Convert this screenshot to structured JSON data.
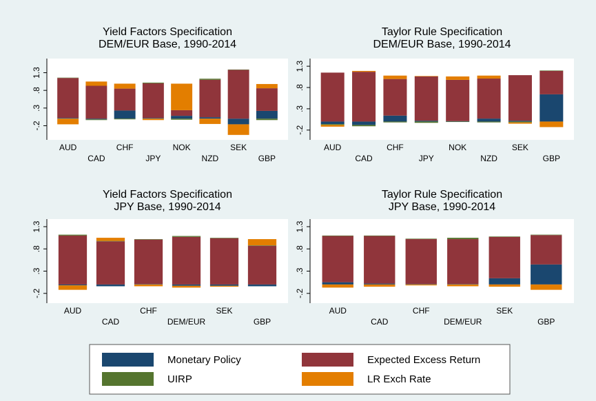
{
  "chart_data": [
    {
      "type": "bar",
      "title": "Yield Factors Specification",
      "subtitle": "DEM/EUR Base, 1990-2014",
      "categories": [
        "AUD",
        "CAD",
        "CHF",
        "JPY",
        "NOK",
        "NZD",
        "SEK",
        "GBP"
      ],
      "series": [
        {
          "name": "Monetary Policy",
          "color": "#1a476f",
          "values": [
            0.02,
            -0.02,
            0.23,
            0.02,
            0.08,
            0.04,
            -0.16,
            0.22
          ]
        },
        {
          "name": "Expected Excess Return",
          "color": "#90353b",
          "values": [
            1.13,
            0.93,
            0.62,
            0.98,
            0.16,
            1.06,
            1.38,
            0.64
          ]
        },
        {
          "name": "UIRP",
          "color": "#55752f",
          "values": [
            0.01,
            -0.02,
            -0.02,
            0.02,
            -0.03,
            0.03,
            0.01,
            -0.04
          ]
        },
        {
          "name": "LR Exch Rate",
          "color": "#e37e00",
          "values": [
            -0.16,
            0.12,
            0.14,
            -0.04,
            0.75,
            -0.15,
            -0.3,
            0.12
          ]
        }
      ],
      "ylim": [
        -0.6,
        1.7
      ],
      "yticks": [
        {
          "value": -0.2,
          "label": "-.2"
        },
        {
          "value": 0.3,
          "label": ".3"
        },
        {
          "value": 0.8,
          "label": ".8"
        },
        1.3
      ]
    },
    {
      "type": "bar",
      "title": "Taylor Rule Specification",
      "subtitle": "DEM/EUR Base, 1990-2014",
      "categories": [
        "AUD",
        "CAD",
        "CHF",
        "JPY",
        "NOK",
        "NZD",
        "SEK",
        "GBP"
      ],
      "series": [
        {
          "name": "Monetary Policy",
          "color": "#1a476f",
          "values": [
            -0.06,
            -0.08,
            0.14,
            0.02,
            0.01,
            0.07,
            0.02,
            0.64
          ]
        },
        {
          "name": "Expected Excess Return",
          "color": "#90353b",
          "values": [
            1.15,
            1.17,
            0.86,
            1.04,
            0.97,
            0.94,
            1.07,
            0.55
          ]
        },
        {
          "name": "UIRP",
          "color": "#55752f",
          "values": [
            -0.02,
            -0.03,
            -0.02,
            -0.03,
            -0.01,
            -0.02,
            -0.02,
            0.01
          ]
        },
        {
          "name": "LR Exch Rate",
          "color": "#e37e00",
          "values": [
            -0.04,
            0.02,
            0.08,
            0.01,
            0.08,
            0.07,
            -0.03,
            -0.13
          ]
        }
      ],
      "ylim": [
        -0.43,
        1.48
      ],
      "yticks": [
        {
          "value": -0.2,
          "label": "-.2"
        },
        {
          "value": 0.3,
          "label": ".3"
        },
        {
          "value": 0.8,
          "label": ".8"
        },
        1.3
      ]
    },
    {
      "type": "bar",
      "title": "Yield Factors Specification",
      "subtitle": "JPY Base, 1990-2014",
      "categories": [
        "AUD",
        "CAD",
        "CHF",
        "DEM/EUR",
        "SEK",
        "GBP"
      ],
      "series": [
        {
          "name": "Monetary Policy",
          "color": "#1a476f",
          "values": [
            -0.02,
            -0.04,
            0.01,
            -0.03,
            -0.03,
            -0.04
          ]
        },
        {
          "name": "Expected Excess Return",
          "color": "#90353b",
          "values": [
            1.1,
            0.97,
            1.0,
            1.07,
            1.04,
            0.87
          ]
        },
        {
          "name": "UIRP",
          "color": "#55752f",
          "values": [
            0.02,
            0.01,
            0.01,
            0.02,
            0.01,
            0.01
          ]
        },
        {
          "name": "LR Exch Rate",
          "color": "#e37e00",
          "values": [
            -0.1,
            0.07,
            -0.04,
            -0.04,
            -0.02,
            0.14
          ]
        }
      ],
      "ylim": [
        -0.42,
        1.47
      ],
      "yticks": [
        {
          "value": -0.2,
          "label": "-.2"
        },
        {
          "value": 0.3,
          "label": ".3"
        },
        {
          "value": 0.8,
          "label": ".8"
        },
        1.3
      ]
    },
    {
      "type": "bar",
      "title": "Taylor Rule Specification",
      "subtitle": "JPY Base, 1990-2014",
      "categories": [
        "AUD",
        "CAD",
        "CHF",
        "DEM/EUR",
        "SEK",
        "GBP"
      ],
      "series": [
        {
          "name": "Monetary Policy",
          "color": "#1a476f",
          "values": [
            0.05,
            0.02,
            0.01,
            0.01,
            0.14,
            0.45
          ]
        },
        {
          "name": "Expected Excess Return",
          "color": "#90353b",
          "values": [
            1.04,
            1.07,
            1.01,
            1.01,
            0.93,
            0.66
          ]
        },
        {
          "name": "UIRP",
          "color": "#55752f",
          "values": [
            0.01,
            0.01,
            0.01,
            0.03,
            0.01,
            0.01
          ]
        },
        {
          "name": "LR Exch Rate",
          "color": "#e37e00",
          "values": [
            -0.07,
            -0.05,
            -0.02,
            -0.04,
            -0.05,
            -0.12
          ]
        }
      ],
      "ylim": [
        -0.42,
        1.47
      ],
      "yticks": [
        {
          "value": -0.2,
          "label": "-.2"
        },
        {
          "value": 0.3,
          "label": ".3"
        },
        {
          "value": 0.8,
          "label": ".8"
        },
        1.3
      ]
    }
  ]
}
